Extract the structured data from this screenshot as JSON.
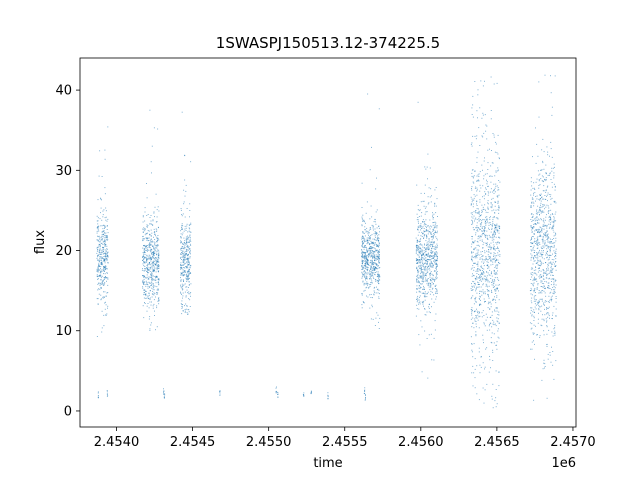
{
  "chart_data": {
    "type": "scatter",
    "title": "1SWASPJ150513.12-374225.5",
    "xlabel": "time",
    "ylabel": "flux",
    "x_offset_label": "1e6",
    "xlim": [
      2453760,
      2457020
    ],
    "ylim": [
      -2,
      44
    ],
    "x_ticks": [
      {
        "value": 2454000,
        "label": "2.4540"
      },
      {
        "value": 2454500,
        "label": "2.4545"
      },
      {
        "value": 2455000,
        "label": "2.4550"
      },
      {
        "value": 2455500,
        "label": "2.4555"
      },
      {
        "value": 2456000,
        "label": "2.4560"
      },
      {
        "value": 2456500,
        "label": "2.4565"
      },
      {
        "value": 2457000,
        "label": "2.4570"
      }
    ],
    "y_ticks": [
      {
        "value": 0,
        "label": "0"
      },
      {
        "value": 10,
        "label": "10"
      },
      {
        "value": 20,
        "label": "20"
      },
      {
        "value": 30,
        "label": "30"
      },
      {
        "value": 40,
        "label": "40"
      }
    ],
    "grid": false,
    "marker_color": "#1f77b4",
    "segments": [
      {
        "x_start": 2453870,
        "x_end": 2453945,
        "center": 19.0,
        "spread": 3.0,
        "min": 9,
        "max": 39
      },
      {
        "x_start": 2454170,
        "x_end": 2454280,
        "center": 18.5,
        "spread": 3.0,
        "min": 10,
        "max": 41
      },
      {
        "x_start": 2454420,
        "x_end": 2454490,
        "center": 18.5,
        "spread": 3.0,
        "min": 12,
        "max": 39
      },
      {
        "x_start": 2455610,
        "x_end": 2455730,
        "center": 19.0,
        "spread": 2.5,
        "min": 10,
        "max": 40
      },
      {
        "x_start": 2455970,
        "x_end": 2456110,
        "center": 19.0,
        "spread": 3.5,
        "min": 4,
        "max": 42
      },
      {
        "x_start": 2456330,
        "x_end": 2456520,
        "center": 20.0,
        "spread": 7.0,
        "min": 0,
        "max": 42
      },
      {
        "x_start": 2456720,
        "x_end": 2456890,
        "center": 19.5,
        "spread": 6.0,
        "min": 0.5,
        "max": 42
      }
    ],
    "low_points": [
      {
        "x": 2453880,
        "y": 2.0
      },
      {
        "x": 2453940,
        "y": 2.2
      },
      {
        "x": 2454310,
        "y": 2.4
      },
      {
        "x": 2454315,
        "y": 1.8
      },
      {
        "x": 2454680,
        "y": 2.3
      },
      {
        "x": 2455050,
        "y": 2.6
      },
      {
        "x": 2455060,
        "y": 2.1
      },
      {
        "x": 2455230,
        "y": 2.0
      },
      {
        "x": 2455280,
        "y": 2.2
      },
      {
        "x": 2455390,
        "y": 1.9
      },
      {
        "x": 2455630,
        "y": 2.5
      },
      {
        "x": 2455635,
        "y": 1.7
      }
    ]
  }
}
